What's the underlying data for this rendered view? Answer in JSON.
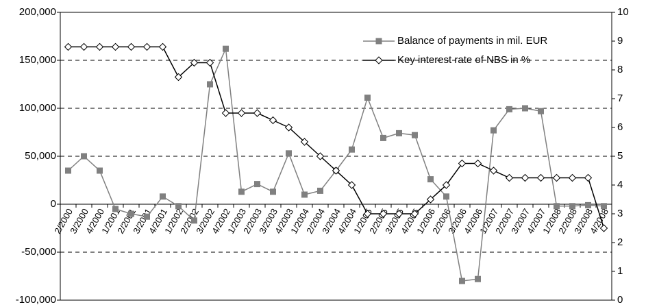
{
  "chart_data": {
    "type": "line",
    "categories": [
      "2/2000",
      "3/2000",
      "4/2000",
      "1/2001",
      "2/2001",
      "3/2001",
      "4/2001",
      "1/2002",
      "2/2002",
      "3/2002",
      "4/2002",
      "1/2003",
      "2/2003",
      "3/2003",
      "4/2003",
      "1/2004",
      "2/2004",
      "3/2004",
      "4/2004",
      "1/2005",
      "2/2005",
      "3/2005",
      "4/2005",
      "1/2006",
      "2/2006",
      "3/2006",
      "4/2006",
      "1/2007",
      "2/2007",
      "3/2007",
      "4/2007",
      "1/2008",
      "2/2008",
      "3/2008",
      "4/2008"
    ],
    "series": [
      {
        "name": "Balance of payments in mil. EUR",
        "color": "#808080",
        "marker": "square",
        "values": [
          35000,
          50000,
          35000,
          -5000,
          -10000,
          -13000,
          8000,
          -2000,
          -17000,
          125000,
          162000,
          13000,
          21000,
          13000,
          53000,
          10000,
          14000,
          35000,
          57000,
          111000,
          69000,
          74000,
          72000,
          26000,
          8000,
          -80000,
          -78000,
          77000,
          99000,
          100000,
          97000,
          -2000,
          -2000,
          -1000,
          -2000
        ]
      },
      {
        "name": "Key interest rate of NBS in %",
        "color": "#000000",
        "marker": "diamond",
        "axis": "y2",
        "values": [
          8.8,
          8.8,
          8.8,
          8.8,
          8.8,
          8.8,
          8.8,
          7.75,
          8.25,
          8.25,
          6.5,
          6.5,
          6.5,
          6.25,
          6.0,
          5.5,
          5.0,
          4.5,
          4.0,
          3.0,
          3.0,
          3.0,
          3.0,
          3.5,
          4.0,
          4.75,
          4.75,
          4.5,
          4.25,
          4.25,
          4.25,
          4.25,
          4.25,
          4.25,
          2.5
        ]
      }
    ],
    "ylim": [
      -100000,
      200000
    ],
    "yticks": [
      {
        "value": -100000,
        "label": "-100,000"
      },
      {
        "value": -50000,
        "label": "-50,000"
      },
      0,
      {
        "value": 50000,
        "label": "50,000"
      },
      {
        "value": 100000,
        "label": "100,000"
      },
      {
        "value": 150000,
        "label": "150,000"
      },
      {
        "value": 200000,
        "label": "200,000"
      }
    ],
    "y2lim": [
      0,
      10
    ],
    "y2ticks": [
      0,
      1,
      2,
      3,
      4,
      5,
      6,
      7,
      8,
      9,
      10
    ],
    "grid": true,
    "legend": "upper right"
  }
}
